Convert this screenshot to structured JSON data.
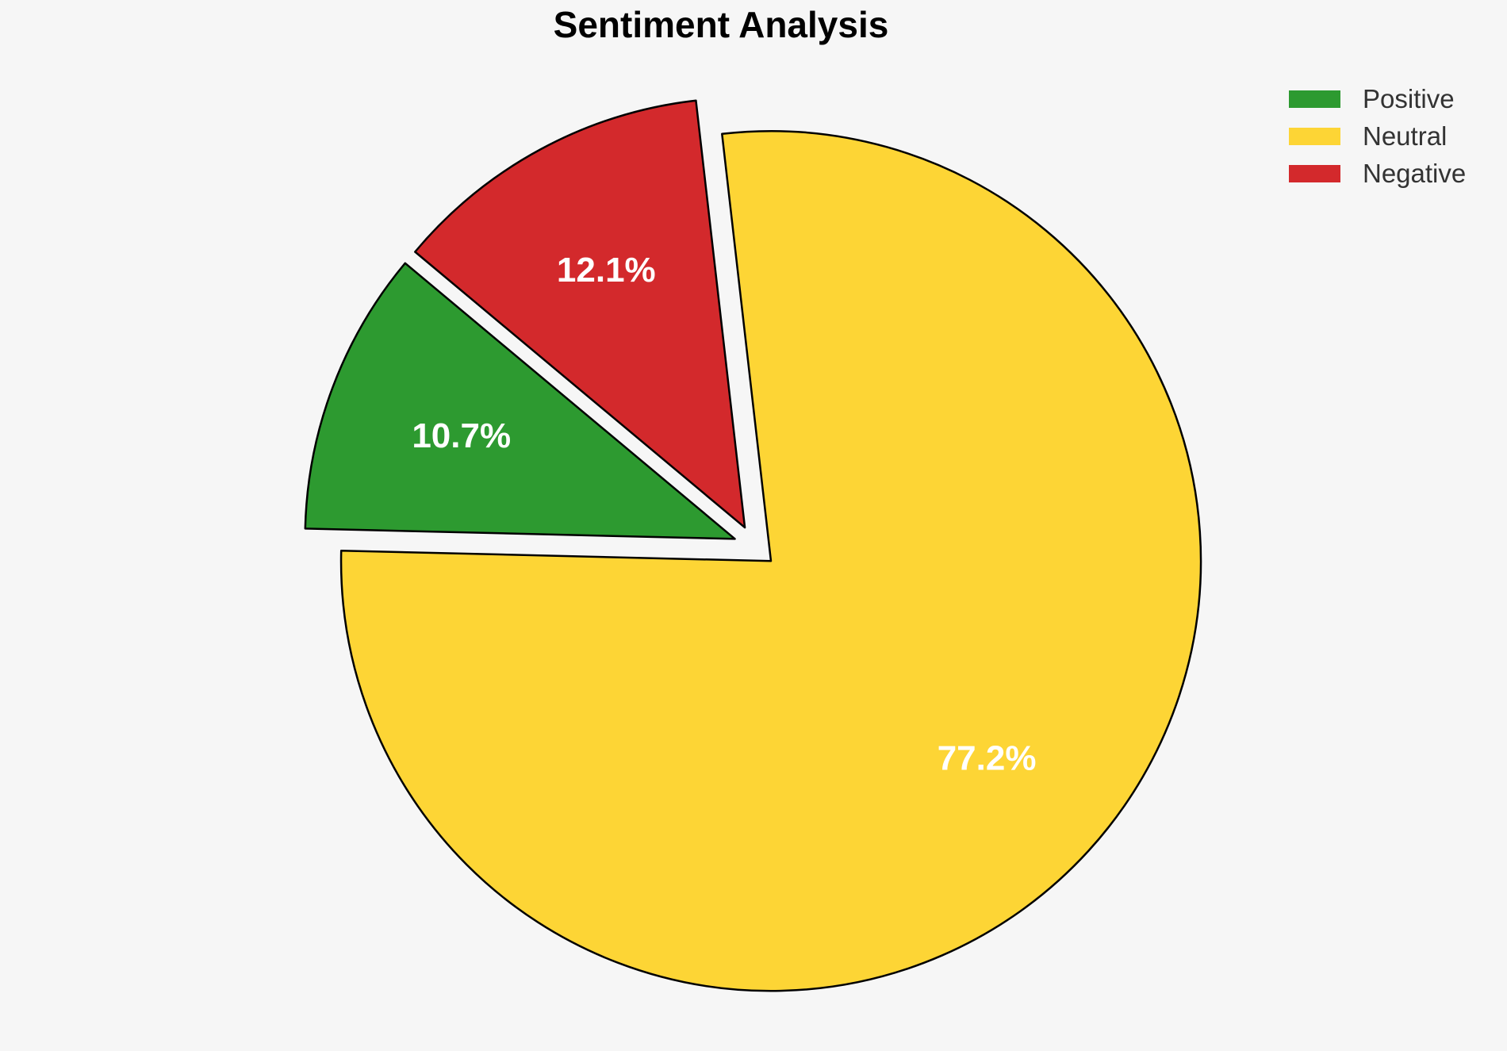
{
  "page": {
    "background_color": "#F6F6F6"
  },
  "chart_data": {
    "type": "pie",
    "title": "Sentiment Analysis",
    "slices": [
      {
        "label": "Positive",
        "value": 10.7,
        "pct_label": "10.7%",
        "color": "#2D9A30"
      },
      {
        "label": "Neutral",
        "value": 77.2,
        "pct_label": "77.2%",
        "color": "#FDD535"
      },
      {
        "label": "Negative",
        "value": 12.1,
        "pct_label": "12.1%",
        "color": "#D3292C"
      }
    ],
    "start_angle": 140.1,
    "counterclock": true,
    "explode": [
      0.05,
      0.05,
      0.05
    ],
    "label_distance": 0.68,
    "edge_color": "#000000",
    "edge_width": 2.5,
    "pct_label_color": "#FFFFFF",
    "legend": {
      "position": "upper right",
      "entries": [
        "Positive",
        "Neutral",
        "Negative"
      ]
    }
  }
}
